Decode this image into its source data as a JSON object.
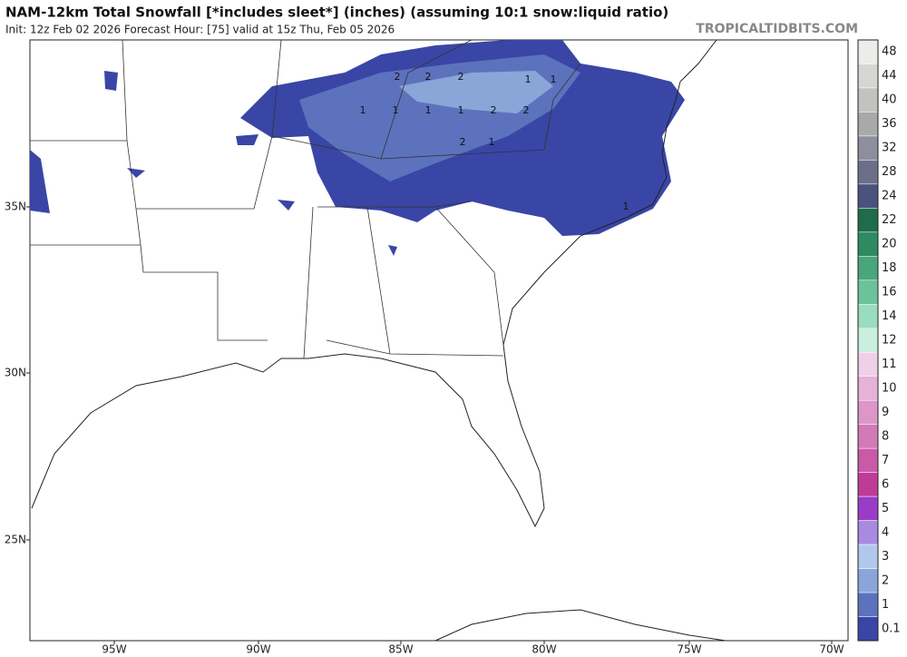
{
  "header": {
    "title": "NAM-12km Total Snowfall [*includes sleet*] (inches) (assuming 10:1 snow:liquid ratio)",
    "subtitle": "Init: 12z Feb 02 2026   Forecast Hour: [75]   valid at 15z Thu, Feb 05 2026",
    "site": "TROPICALTIDBITS.COM"
  },
  "axes": {
    "lat_labels": [
      "35N",
      "30N",
      "25N"
    ],
    "lon_labels": [
      "95W",
      "90W",
      "85W",
      "80W",
      "75W",
      "70W"
    ]
  },
  "colorbar": [
    {
      "label": "48",
      "color": "#ececea"
    },
    {
      "label": "44",
      "color": "#d6d6d2"
    },
    {
      "label": "40",
      "color": "#c2c2be"
    },
    {
      "label": "36",
      "color": "#a9a9a9"
    },
    {
      "label": "32",
      "color": "#8d8f9c"
    },
    {
      "label": "28",
      "color": "#6c6f8a"
    },
    {
      "label": "24",
      "color": "#4c527e"
    },
    {
      "label": "22",
      "color": "#1f6b4a"
    },
    {
      "label": "20",
      "color": "#2e8a60"
    },
    {
      "label": "18",
      "color": "#48a67a"
    },
    {
      "label": "16",
      "color": "#6cc29a"
    },
    {
      "label": "14",
      "color": "#9adcbf"
    },
    {
      "label": "12",
      "color": "#c9efdf"
    },
    {
      "label": "11",
      "color": "#f0d0e8"
    },
    {
      "label": "10",
      "color": "#e6b2d8"
    },
    {
      "label": "9",
      "color": "#dc96c8"
    },
    {
      "label": "8",
      "color": "#d27ab8"
    },
    {
      "label": "7",
      "color": "#c85aa8"
    },
    {
      "label": "6",
      "color": "#be3c98"
    },
    {
      "label": "5",
      "color": "#9a3cc8"
    },
    {
      "label": "4",
      "color": "#a88ae0"
    },
    {
      "label": "3",
      "color": "#b0c8ec"
    },
    {
      "label": "2",
      "color": "#8aa6d8"
    },
    {
      "label": "1",
      "color": "#5c72bc"
    },
    {
      "label": "0.1",
      "color": "#3a46a6"
    }
  ],
  "contour_labels": [
    "2",
    "2",
    "2",
    "1",
    "1",
    "1",
    "1",
    "1",
    "2",
    "2",
    "1",
    "2",
    "1",
    "1"
  ]
}
